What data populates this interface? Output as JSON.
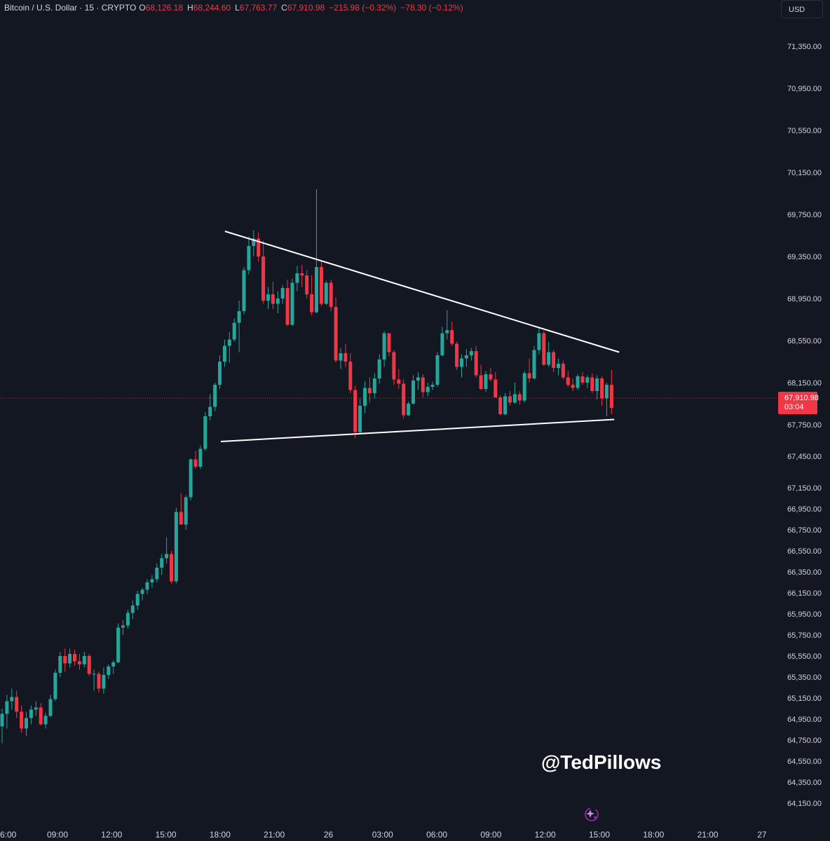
{
  "legend": {
    "title": "Bitcoin / U.S. Dollar · 15 · CRYPTO",
    "o_label": "O",
    "o_value": "68,126.18",
    "h_label": "H",
    "h_value": "68,244.60",
    "l_label": "L",
    "l_value": "67,763.77",
    "c_label": "C",
    "c_value": "67,910.98",
    "change": "−215.98 (−0.32%)",
    "change2": "−78.30 (−0.12%)"
  },
  "currency": "USD",
  "last_price": {
    "price": "67,910.98",
    "countdown": "03:04"
  },
  "watermark": "@TedPillows",
  "colors": {
    "background": "#131722",
    "up": "#26a69a",
    "down": "#f23645",
    "text": "#d1d4dc",
    "trendline": "#ffffff"
  },
  "icons": [
    "sparkle-icon"
  ],
  "chart_data": {
    "type": "candlestick",
    "title": "Bitcoin / U.S. Dollar · 15 · CRYPTO",
    "y_tick_labels": [
      "71,350.00",
      "70,950.00",
      "70,550.00",
      "70,150.00",
      "69,750.00",
      "69,350.00",
      "68,950.00",
      "68,550.00",
      "68,150.00",
      "67,750.00",
      "67,450.00",
      "67,150.00",
      "66,950.00",
      "66,750.00",
      "66,550.00",
      "66,350.00",
      "66,150.00",
      "65,950.00",
      "65,750.00",
      "65,550.00",
      "65,350.00",
      "65,150.00",
      "64,950.00",
      "64,750.00",
      "64,550.00",
      "64,350.00",
      "64,150.00"
    ],
    "x_tick_labels": [
      "6:00",
      "09:00",
      "12:00",
      "15:00",
      "18:00",
      "21:00",
      "26",
      "03:00",
      "06:00",
      "09:00",
      "12:00",
      "15:00",
      "18:00",
      "21:00",
      "27"
    ],
    "ylim": [
      64050,
      71500
    ],
    "candles": [
      [
        64880,
        65050,
        64720,
        65000
      ],
      [
        65000,
        65180,
        64860,
        65120
      ],
      [
        65120,
        65240,
        65040,
        65160
      ],
      [
        65160,
        65220,
        64960,
        65020
      ],
      [
        65020,
        65080,
        64820,
        64860
      ],
      [
        64860,
        65020,
        64790,
        64960
      ],
      [
        64960,
        65080,
        64900,
        65040
      ],
      [
        65040,
        65120,
        64980,
        65060
      ],
      [
        65060,
        65100,
        64890,
        64900
      ],
      [
        64900,
        65010,
        64860,
        64980
      ],
      [
        64980,
        65180,
        64970,
        65140
      ],
      [
        65140,
        65420,
        65120,
        65390
      ],
      [
        65390,
        65590,
        65350,
        65550
      ],
      [
        65550,
        65620,
        65400,
        65480
      ],
      [
        65480,
        65620,
        65440,
        65570
      ],
      [
        65570,
        65610,
        65460,
        65500
      ],
      [
        65500,
        65570,
        65420,
        65470
      ],
      [
        65470,
        65590,
        65440,
        65550
      ],
      [
        65550,
        65570,
        65360,
        65380
      ],
      [
        65380,
        65420,
        65220,
        65380
      ],
      [
        65380,
        65400,
        65200,
        65240
      ],
      [
        65240,
        65440,
        65190,
        65370
      ],
      [
        65370,
        65470,
        65330,
        65450
      ],
      [
        65450,
        65510,
        65380,
        65490
      ],
      [
        65490,
        65860,
        65480,
        65820
      ],
      [
        65820,
        65890,
        65750,
        65840
      ],
      [
        65840,
        65990,
        65810,
        65960
      ],
      [
        65960,
        66080,
        65900,
        66030
      ],
      [
        66030,
        66170,
        65990,
        66140
      ],
      [
        66140,
        66200,
        66080,
        66180
      ],
      [
        66180,
        66280,
        66140,
        66250
      ],
      [
        66250,
        66320,
        66200,
        66280
      ],
      [
        66280,
        66430,
        66250,
        66390
      ],
      [
        66390,
        66520,
        66320,
        66480
      ],
      [
        66480,
        66680,
        66430,
        66520
      ],
      [
        66520,
        66550,
        66240,
        66260
      ],
      [
        66260,
        66960,
        66240,
        66920
      ],
      [
        66920,
        67100,
        66800,
        66800
      ],
      [
        66800,
        67080,
        66750,
        67060
      ],
      [
        67060,
        67430,
        67030,
        67420
      ],
      [
        67420,
        67500,
        67330,
        67350
      ],
      [
        67350,
        67550,
        67330,
        67520
      ],
      [
        67520,
        67870,
        67500,
        67830
      ],
      [
        67830,
        68040,
        67790,
        67920
      ],
      [
        67920,
        68150,
        67880,
        68130
      ],
      [
        68130,
        68410,
        68090,
        68350
      ],
      [
        68350,
        68560,
        68300,
        68500
      ],
      [
        68500,
        68630,
        68340,
        68560
      ],
      [
        68560,
        68760,
        68540,
        68720
      ],
      [
        68720,
        68930,
        68440,
        68830
      ],
      [
        68830,
        69250,
        68800,
        69220
      ],
      [
        69220,
        69540,
        69180,
        69450
      ],
      [
        69450,
        69600,
        69350,
        69520
      ],
      [
        69520,
        69580,
        69300,
        69350
      ],
      [
        69350,
        69500,
        68900,
        68930
      ],
      [
        68930,
        69060,
        68850,
        68990
      ],
      [
        68990,
        69110,
        68850,
        68900
      ],
      [
        68900,
        69020,
        68810,
        68950
      ],
      [
        68950,
        69080,
        68900,
        69050
      ],
      [
        69050,
        69130,
        68690,
        68700
      ],
      [
        68700,
        69140,
        68690,
        69100
      ],
      [
        69100,
        69260,
        69020,
        69190
      ],
      [
        69190,
        69270,
        69060,
        69170
      ],
      [
        69170,
        69220,
        68950,
        68990
      ],
      [
        68990,
        69170,
        68790,
        68820
      ],
      [
        68820,
        69990,
        68810,
        69250
      ],
      [
        69250,
        69300,
        68880,
        68900
      ],
      [
        68900,
        69120,
        68890,
        69100
      ],
      [
        69100,
        69130,
        68830,
        68870
      ],
      [
        68870,
        68960,
        68340,
        68360
      ],
      [
        68360,
        68480,
        68280,
        68430
      ],
      [
        68430,
        68520,
        68300,
        68350
      ],
      [
        68350,
        68430,
        68050,
        68080
      ],
      [
        68080,
        68120,
        67620,
        67680
      ],
      [
        67680,
        68000,
        67660,
        67930
      ],
      [
        67930,
        68160,
        67860,
        68100
      ],
      [
        68100,
        68200,
        67960,
        68050
      ],
      [
        68050,
        68240,
        68000,
        68190
      ],
      [
        68190,
        68420,
        68140,
        68370
      ],
      [
        68370,
        68640,
        68300,
        68620
      ],
      [
        68620,
        68620,
        68400,
        68440
      ],
      [
        68440,
        68460,
        68130,
        68180
      ],
      [
        68180,
        68280,
        68090,
        68140
      ],
      [
        68140,
        68180,
        67810,
        67840
      ],
      [
        67840,
        67970,
        67830,
        67950
      ],
      [
        67950,
        68220,
        67940,
        68170
      ],
      [
        68170,
        68250,
        68080,
        68200
      ],
      [
        68200,
        68230,
        68010,
        68060
      ],
      [
        68060,
        68150,
        68020,
        68110
      ],
      [
        68110,
        68160,
        68080,
        68130
      ],
      [
        68130,
        68440,
        68110,
        68410
      ],
      [
        68410,
        68680,
        68400,
        68620
      ],
      [
        68620,
        68840,
        68560,
        68650
      ],
      [
        68650,
        68730,
        68500,
        68520
      ],
      [
        68520,
        68540,
        68270,
        68300
      ],
      [
        68300,
        68420,
        68200,
        68380
      ],
      [
        68380,
        68470,
        68300,
        68410
      ],
      [
        68410,
        68480,
        68360,
        68450
      ],
      [
        68450,
        68500,
        68200,
        68220
      ],
      [
        68220,
        68320,
        68080,
        68090
      ],
      [
        68090,
        68260,
        68060,
        68230
      ],
      [
        68230,
        68290,
        68160,
        68180
      ],
      [
        68180,
        68250,
        68010,
        68010
      ],
      [
        68010,
        68030,
        67840,
        67850
      ],
      [
        67850,
        68050,
        67840,
        68020
      ],
      [
        68020,
        68070,
        67930,
        67960
      ],
      [
        67960,
        68150,
        67950,
        68040
      ],
      [
        68040,
        68070,
        67940,
        67980
      ],
      [
        67980,
        68260,
        67960,
        68240
      ],
      [
        68240,
        68380,
        68150,
        68190
      ],
      [
        68190,
        68500,
        68180,
        68460
      ],
      [
        68460,
        68670,
        68420,
        68620
      ],
      [
        68620,
        68640,
        68310,
        68320
      ],
      [
        68320,
        68540,
        68300,
        68440
      ],
      [
        68440,
        68460,
        68250,
        68290
      ],
      [
        68290,
        68380,
        68220,
        68330
      ],
      [
        68330,
        68360,
        68180,
        68200
      ],
      [
        68200,
        68260,
        68110,
        68130
      ],
      [
        68130,
        68190,
        68070,
        68100
      ],
      [
        68100,
        68230,
        68080,
        68210
      ],
      [
        68210,
        68250,
        68130,
        68150
      ],
      [
        68150,
        68220,
        68100,
        68200
      ],
      [
        68200,
        68240,
        68050,
        68070
      ],
      [
        68070,
        68220,
        67990,
        68190
      ],
      [
        68190,
        68210,
        67930,
        68000
      ],
      [
        68000,
        68150,
        67830,
        68130
      ],
      [
        68130,
        68270,
        67850,
        67910
      ]
    ],
    "trendlines": [
      {
        "name": "upper",
        "points": [
          [
            69590,
            0.271
          ],
          [
            68440,
            0.746
          ]
        ]
      },
      {
        "name": "lower",
        "points": [
          [
            67590,
            0.266
          ],
          [
            67800,
            0.74
          ]
        ]
      }
    ]
  }
}
